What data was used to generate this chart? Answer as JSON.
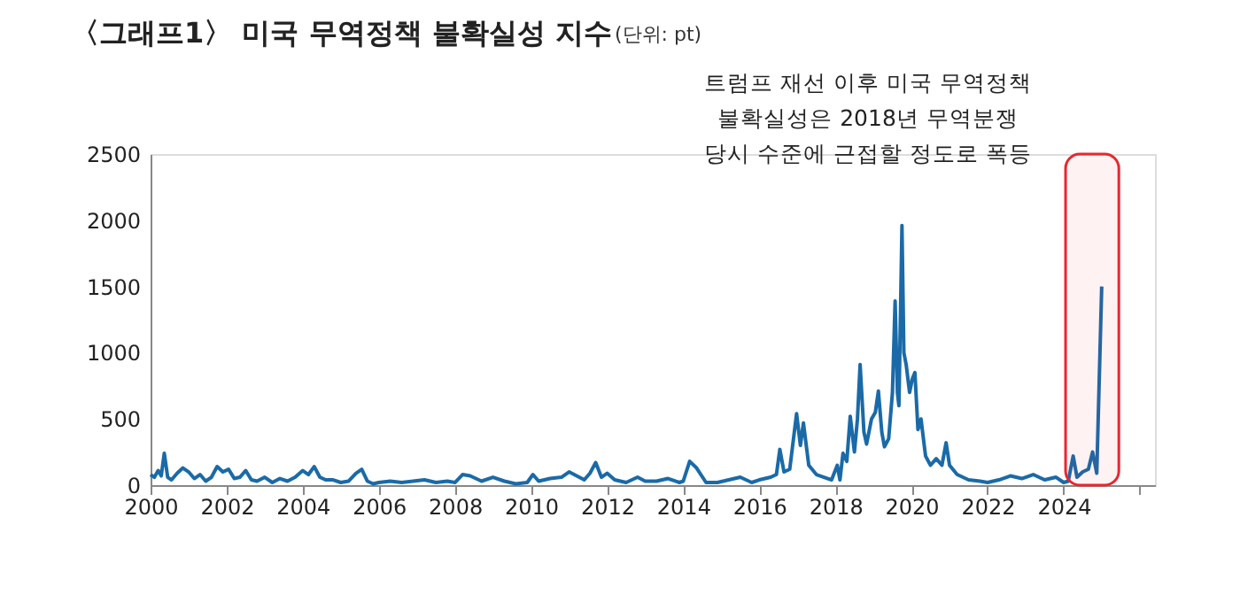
{
  "chart_data": {
    "type": "line",
    "title": "〈그래프1〉 미국 무역정책 불확실성 지수",
    "subtitle": "(단위: pt)",
    "x": [
      2000.0,
      2000.1,
      2000.2,
      2000.28,
      2000.36,
      2000.45,
      2000.55,
      2000.7,
      2000.85,
      2001.0,
      2001.15,
      2001.3,
      2001.45,
      2001.6,
      2001.75,
      2001.9,
      2002.05,
      2002.2,
      2002.35,
      2002.5,
      2002.65,
      2002.8,
      2003.0,
      2003.2,
      2003.4,
      2003.6,
      2003.8,
      2004.0,
      2004.15,
      2004.3,
      2004.45,
      2004.6,
      2004.8,
      2005.0,
      2005.2,
      2005.4,
      2005.55,
      2005.7,
      2005.85,
      2006.0,
      2006.3,
      2006.6,
      2006.9,
      2007.2,
      2007.5,
      2007.8,
      2008.0,
      2008.2,
      2008.4,
      2008.7,
      2009.0,
      2009.3,
      2009.6,
      2009.9,
      2010.05,
      2010.2,
      2010.5,
      2010.8,
      2011.0,
      2011.2,
      2011.4,
      2011.55,
      2011.7,
      2011.85,
      2012.0,
      2012.2,
      2012.5,
      2012.8,
      2013.0,
      2013.3,
      2013.6,
      2013.9,
      2014.0,
      2014.17,
      2014.35,
      2014.6,
      2014.9,
      2015.2,
      2015.5,
      2015.8,
      2016.0,
      2016.3,
      2016.45,
      2016.54,
      2016.65,
      2016.8,
      2016.98,
      2017.08,
      2017.16,
      2017.3,
      2017.5,
      2017.7,
      2017.9,
      2018.05,
      2018.12,
      2018.2,
      2018.3,
      2018.39,
      2018.5,
      2018.58,
      2018.65,
      2018.75,
      2018.82,
      2018.95,
      2019.05,
      2019.13,
      2019.22,
      2019.29,
      2019.4,
      2019.5,
      2019.57,
      2019.63,
      2019.67,
      2019.75,
      2019.8,
      2019.86,
      2019.95,
      2020.02,
      2020.09,
      2020.17,
      2020.25,
      2020.37,
      2020.5,
      2020.65,
      2020.8,
      2020.91,
      2021.0,
      2021.2,
      2021.5,
      2021.8,
      2022.0,
      2022.3,
      2022.6,
      2022.9,
      2023.2,
      2023.5,
      2023.8,
      2024.0,
      2024.12,
      2024.25,
      2024.35,
      2024.5,
      2024.65,
      2024.76,
      2024.87,
      2025.0
    ],
    "series": [
      {
        "color": "#1a6aa8",
        "values": [
          80,
          60,
          110,
          70,
          240,
          60,
          40,
          90,
          130,
          100,
          50,
          80,
          30,
          60,
          140,
          100,
          120,
          50,
          60,
          110,
          40,
          30,
          60,
          20,
          50,
          30,
          60,
          110,
          80,
          140,
          60,
          40,
          40,
          20,
          30,
          90,
          120,
          30,
          10,
          20,
          30,
          20,
          30,
          40,
          20,
          30,
          20,
          80,
          70,
          30,
          60,
          30,
          10,
          20,
          80,
          30,
          50,
          60,
          100,
          70,
          40,
          90,
          170,
          60,
          90,
          40,
          20,
          60,
          30,
          30,
          50,
          20,
          30,
          180,
          130,
          20,
          20,
          40,
          60,
          20,
          40,
          60,
          80,
          270,
          100,
          120,
          540,
          300,
          470,
          150,
          80,
          60,
          40,
          150,
          40,
          240,
          180,
          520,
          250,
          500,
          910,
          400,
          310,
          500,
          550,
          710,
          400,
          290,
          350,
          700,
          1390,
          700,
          600,
          1960,
          1000,
          910,
          700,
          800,
          850,
          420,
          500,
          220,
          150,
          200,
          150,
          320,
          150,
          80,
          40,
          30,
          20,
          40,
          70,
          50,
          80,
          40,
          60,
          20,
          30,
          220,
          60,
          100,
          120,
          250,
          90,
          1500
        ]
      }
    ],
    "xlim": [
      2000,
      2026.4
    ],
    "xticks": [
      2000,
      2002,
      2004,
      2006,
      2008,
      2010,
      2012,
      2014,
      2016,
      2018,
      2020,
      2022,
      2024,
      {
        "value": 2026,
        "label": null
      }
    ],
    "ylim": [
      0,
      2500
    ],
    "yticks": [
      0,
      500,
      1000,
      1500,
      2000,
      2500
    ],
    "grid": false,
    "marker": "none",
    "line_style": "solid",
    "bands": [
      {
        "axis": "x",
        "from": 2024.05,
        "to": 2025.45,
        "color": "#e8262d"
      }
    ],
    "annotations": [
      "트럼프 재선 이후 미국 무역정책\n불확실성은 2018년 무역분쟁\n당시 수준에 근접할 정도로 폭등"
    ]
  }
}
